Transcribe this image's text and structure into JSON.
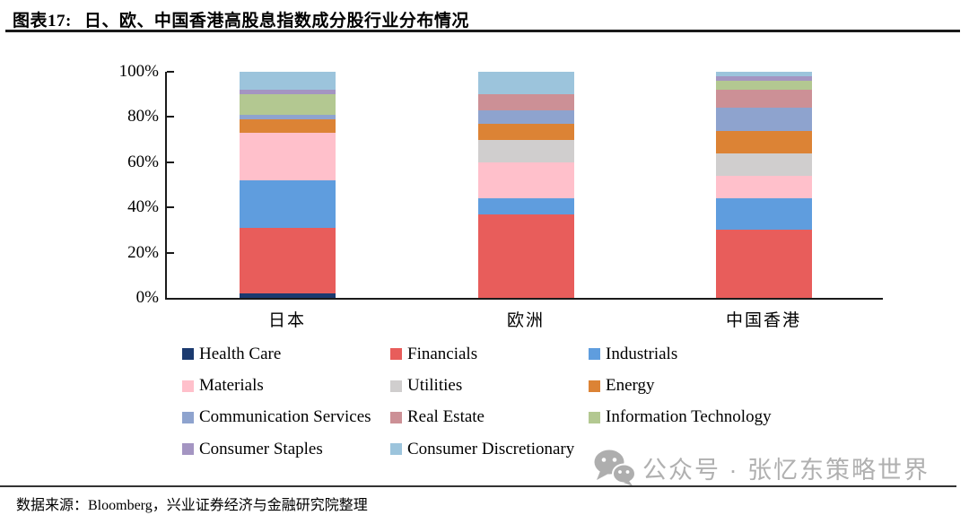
{
  "title": {
    "prefix": "图表17:",
    "text": "日、欧、中国香港高股息指数成分股行业分布情况"
  },
  "source_note": "数据来源：Bloomberg，兴业证券经济与金融研究院整理",
  "watermark": {
    "icon": "wechat-icon",
    "text": "公众号 · 张忆东策略世界",
    "color": "#b0b0b0"
  },
  "chart_data": {
    "type": "bar",
    "stacked": true,
    "unit": "%",
    "categories": [
      "日本",
      "欧洲",
      "中国香港"
    ],
    "series": [
      {
        "name": "Health Care",
        "color": "#1B3A6F",
        "values": [
          2,
          0,
          0
        ]
      },
      {
        "name": "Financials",
        "color": "#E85D5B",
        "values": [
          29,
          37,
          30
        ]
      },
      {
        "name": "Industrials",
        "color": "#5F9DDE",
        "values": [
          21,
          7,
          14
        ]
      },
      {
        "name": "Materials",
        "color": "#FFC0CB",
        "values": [
          21,
          16,
          10
        ]
      },
      {
        "name": "Utilities",
        "color": "#D0CECE",
        "values": [
          0,
          10,
          10
        ]
      },
      {
        "name": "Energy",
        "color": "#DC8335",
        "values": [
          6,
          7,
          10
        ]
      },
      {
        "name": "Communication Services",
        "color": "#8EA3CE",
        "values": [
          2,
          6,
          10
        ]
      },
      {
        "name": "Real Estate",
        "color": "#CC9096",
        "values": [
          0,
          7,
          8
        ]
      },
      {
        "name": "Information Technology",
        "color": "#B3C891",
        "values": [
          9,
          0,
          4
        ]
      },
      {
        "name": "Consumer Staples",
        "color": "#A495C2",
        "values": [
          2,
          0,
          2
        ]
      },
      {
        "name": "Consumer Discretionary",
        "color": "#9CC4DC",
        "values": [
          8,
          10,
          2
        ]
      }
    ],
    "y_ticks": [
      "0%",
      "20%",
      "40%",
      "60%",
      "80%",
      "100%"
    ],
    "ylim": [
      0,
      100
    ],
    "grid": false,
    "legend_position": "bottom"
  }
}
